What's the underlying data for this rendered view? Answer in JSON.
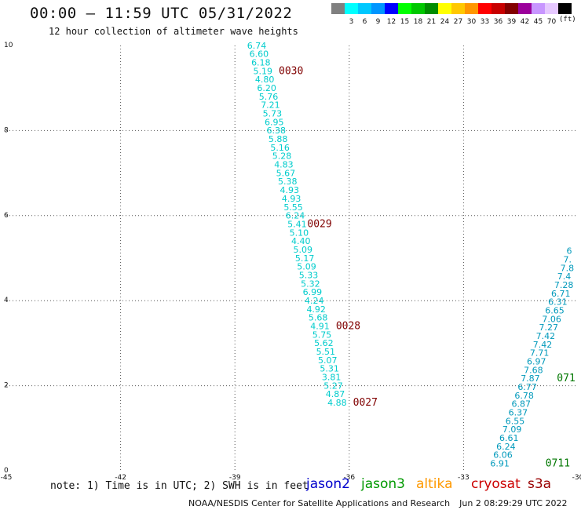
{
  "header": {
    "title": "00:00 – 11:59 UTC 05/31/2022",
    "subtitle": "12 hour collection of altimeter wave heights"
  },
  "colorbar": {
    "unit": "(ft)",
    "bins": [
      {
        "label": "",
        "color": "#808080"
      },
      {
        "label": "3",
        "color": "#00ffff"
      },
      {
        "label": "6",
        "color": "#00c8ff"
      },
      {
        "label": "9",
        "color": "#0096ff"
      },
      {
        "label": "12",
        "color": "#0000ff"
      },
      {
        "label": "15",
        "color": "#00ff00"
      },
      {
        "label": "18",
        "color": "#00c800"
      },
      {
        "label": "21",
        "color": "#008c00"
      },
      {
        "label": "24",
        "color": "#ffff00"
      },
      {
        "label": "27",
        "color": "#ffc800"
      },
      {
        "label": "30",
        "color": "#ff9600"
      },
      {
        "label": "33",
        "color": "#ff0000"
      },
      {
        "label": "36",
        "color": "#c80000"
      },
      {
        "label": "39",
        "color": "#820000"
      },
      {
        "label": "42",
        "color": "#9b009b"
      },
      {
        "label": "45",
        "color": "#c896ff"
      },
      {
        "label": "70",
        "color": "#e6c8ff"
      },
      {
        "label": "",
        "color": "#000000"
      }
    ]
  },
  "footer": {
    "note": "note: 1) Time is in UTC; 2) SWH is in feet",
    "satellites": [
      {
        "name": "jason2",
        "color": "#0000cc"
      },
      {
        "name": "jason3",
        "color": "#009900"
      },
      {
        "name": "altika",
        "color": "#ff9900"
      },
      {
        "name": "cryosat",
        "color": "#cc0000"
      },
      {
        "name": "s3a",
        "color": "#990000"
      }
    ],
    "credit": "NOAA/NESDIS Center for Satellite Applications and Research",
    "timestamp": "Jun  2 08:29:29 UTC 2022"
  },
  "chart_data": {
    "type": "scatter",
    "xlim": [
      -45,
      -30
    ],
    "ylim": [
      0,
      10
    ],
    "xticks": [
      "-45",
      "-42",
      "-39",
      "-36",
      "-33",
      "-30"
    ],
    "yticks": [
      "0",
      "2",
      "4",
      "6",
      "8",
      "10"
    ],
    "grid": true,
    "colors": {
      "wave_label": "#00cccc",
      "wave_label_right": "#0099bb",
      "time_left": "#800000",
      "time_right": "#007700"
    },
    "tracks": [
      {
        "name": "track-left",
        "points": [
          {
            "x": -38.68,
            "y": 9.93,
            "v": "6.74"
          },
          {
            "x": -38.62,
            "y": 9.73,
            "v": "6.60"
          },
          {
            "x": -38.57,
            "y": 9.53,
            "v": "6.18"
          },
          {
            "x": -38.52,
            "y": 9.33,
            "v": "5.19"
          },
          {
            "x": -38.47,
            "y": 9.13,
            "v": "4.80"
          },
          {
            "x": -38.42,
            "y": 8.93,
            "v": "6.20"
          },
          {
            "x": -38.37,
            "y": 8.73,
            "v": "5.76"
          },
          {
            "x": -38.32,
            "y": 8.53,
            "v": "7.21"
          },
          {
            "x": -38.27,
            "y": 8.33,
            "v": "5.73"
          },
          {
            "x": -38.22,
            "y": 8.13,
            "v": "6.95"
          },
          {
            "x": -38.17,
            "y": 7.93,
            "v": "6.38"
          },
          {
            "x": -38.12,
            "y": 7.73,
            "v": "5.88"
          },
          {
            "x": -38.07,
            "y": 7.53,
            "v": "5.16"
          },
          {
            "x": -38.02,
            "y": 7.33,
            "v": "5.28"
          },
          {
            "x": -37.97,
            "y": 7.13,
            "v": "4.83"
          },
          {
            "x": -37.92,
            "y": 6.93,
            "v": "5.67"
          },
          {
            "x": -37.87,
            "y": 6.73,
            "v": "5.38"
          },
          {
            "x": -37.82,
            "y": 6.53,
            "v": "4.93"
          },
          {
            "x": -37.77,
            "y": 6.33,
            "v": "4.93"
          },
          {
            "x": -37.72,
            "y": 6.13,
            "v": "5.55"
          },
          {
            "x": -37.67,
            "y": 5.93,
            "v": "6.24"
          },
          {
            "x": -37.62,
            "y": 5.73,
            "v": "5.41"
          },
          {
            "x": -37.57,
            "y": 5.53,
            "v": "5.10"
          },
          {
            "x": -37.52,
            "y": 5.33,
            "v": "4.40"
          },
          {
            "x": -37.47,
            "y": 5.13,
            "v": "5.09"
          },
          {
            "x": -37.42,
            "y": 4.93,
            "v": "5.17"
          },
          {
            "x": -37.37,
            "y": 4.73,
            "v": "5.09"
          },
          {
            "x": -37.32,
            "y": 4.53,
            "v": "5.33"
          },
          {
            "x": -37.27,
            "y": 4.33,
            "v": "5.32"
          },
          {
            "x": -37.22,
            "y": 4.13,
            "v": "6.99"
          },
          {
            "x": -37.17,
            "y": 3.93,
            "v": "4.24"
          },
          {
            "x": -37.12,
            "y": 3.73,
            "v": "4.92"
          },
          {
            "x": -37.07,
            "y": 3.53,
            "v": "5.68"
          },
          {
            "x": -37.02,
            "y": 3.33,
            "v": "4.91"
          },
          {
            "x": -36.97,
            "y": 3.13,
            "v": "5.75"
          },
          {
            "x": -36.92,
            "y": 2.93,
            "v": "5.62"
          },
          {
            "x": -36.87,
            "y": 2.73,
            "v": "5.51"
          },
          {
            "x": -36.82,
            "y": 2.53,
            "v": "5.07"
          },
          {
            "x": -36.77,
            "y": 2.33,
            "v": "5.31"
          },
          {
            "x": -36.72,
            "y": 2.13,
            "v": "3.81"
          },
          {
            "x": -36.67,
            "y": 1.93,
            "v": "5.27"
          },
          {
            "x": -36.62,
            "y": 1.73,
            "v": "4.87"
          },
          {
            "x": -36.57,
            "y": 1.53,
            "v": "4.88"
          }
        ],
        "times": [
          {
            "x": -37.85,
            "y": 9.33,
            "label": "0030"
          },
          {
            "x": -37.1,
            "y": 5.73,
            "label": "0029"
          },
          {
            "x": -36.35,
            "y": 3.33,
            "label": "0028"
          },
          {
            "x": -35.9,
            "y": 1.53,
            "label": "0027"
          }
        ]
      },
      {
        "name": "track-right",
        "points": [
          {
            "x": -32.3,
            "y": 0.1,
            "v": "6.91"
          },
          {
            "x": -32.22,
            "y": 0.3,
            "v": "6.06"
          },
          {
            "x": -32.14,
            "y": 0.5,
            "v": "6.24"
          },
          {
            "x": -32.06,
            "y": 0.7,
            "v": "6.61"
          },
          {
            "x": -31.98,
            "y": 0.9,
            "v": "7.09"
          },
          {
            "x": -31.9,
            "y": 1.1,
            "v": "6.55"
          },
          {
            "x": -31.82,
            "y": 1.3,
            "v": "6.37"
          },
          {
            "x": -31.74,
            "y": 1.5,
            "v": "6.87"
          },
          {
            "x": -31.66,
            "y": 1.7,
            "v": "6.78"
          },
          {
            "x": -31.58,
            "y": 1.9,
            "v": "6.77"
          },
          {
            "x": -31.5,
            "y": 2.1,
            "v": "7.87"
          },
          {
            "x": -31.42,
            "y": 2.3,
            "v": "7.68"
          },
          {
            "x": -31.34,
            "y": 2.5,
            "v": "6.97"
          },
          {
            "x": -31.26,
            "y": 2.7,
            "v": "7.71"
          },
          {
            "x": -31.18,
            "y": 2.9,
            "v": "7.42"
          },
          {
            "x": -31.1,
            "y": 3.1,
            "v": "7.42"
          },
          {
            "x": -31.02,
            "y": 3.3,
            "v": "7.27"
          },
          {
            "x": -30.94,
            "y": 3.5,
            "v": "7.06"
          },
          {
            "x": -30.86,
            "y": 3.7,
            "v": "6.65"
          },
          {
            "x": -30.78,
            "y": 3.9,
            "v": "6.31"
          },
          {
            "x": -30.7,
            "y": 4.1,
            "v": "6.71"
          },
          {
            "x": -30.62,
            "y": 4.3,
            "v": "7.28"
          },
          {
            "x": -30.54,
            "y": 4.5,
            "v": "7.4"
          },
          {
            "x": -30.46,
            "y": 4.7,
            "v": "7.8"
          },
          {
            "x": -30.38,
            "y": 4.9,
            "v": "7."
          },
          {
            "x": -30.3,
            "y": 5.1,
            "v": "6"
          }
        ],
        "times": [
          {
            "x": -30.85,
            "y": 0.1,
            "label": "0711"
          },
          {
            "x": -30.55,
            "y": 2.1,
            "label": "071"
          }
        ]
      }
    ]
  }
}
